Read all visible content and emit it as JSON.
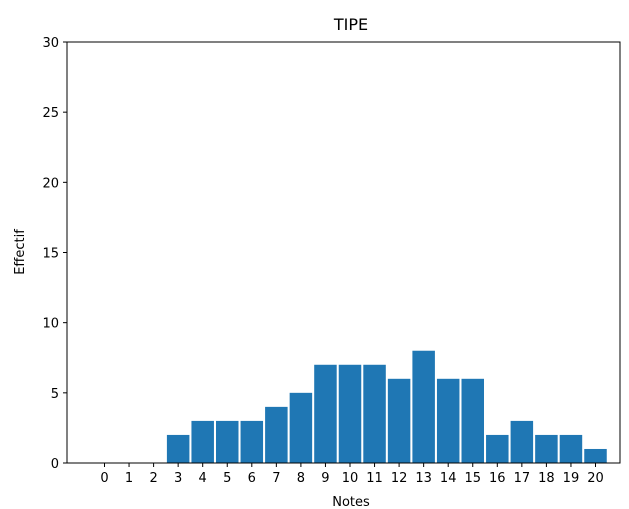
{
  "chart_data": {
    "type": "bar",
    "title": "TIPE",
    "xlabel": "Notes",
    "ylabel": "Effectif",
    "categories": [
      "0",
      "1",
      "2",
      "3",
      "4",
      "5",
      "6",
      "7",
      "8",
      "9",
      "10",
      "11",
      "12",
      "13",
      "14",
      "15",
      "16",
      "17",
      "18",
      "19",
      "20"
    ],
    "values": [
      0,
      0,
      0,
      2,
      3,
      3,
      3,
      4,
      5,
      7,
      7,
      7,
      6,
      8,
      6,
      6,
      2,
      3,
      2,
      2,
      1
    ],
    "ylim": [
      0,
      30
    ],
    "yticks": [
      0,
      5,
      10,
      15,
      20,
      25,
      30
    ],
    "bar_color": "#1f77b4",
    "grid": false,
    "legend": "none"
  }
}
